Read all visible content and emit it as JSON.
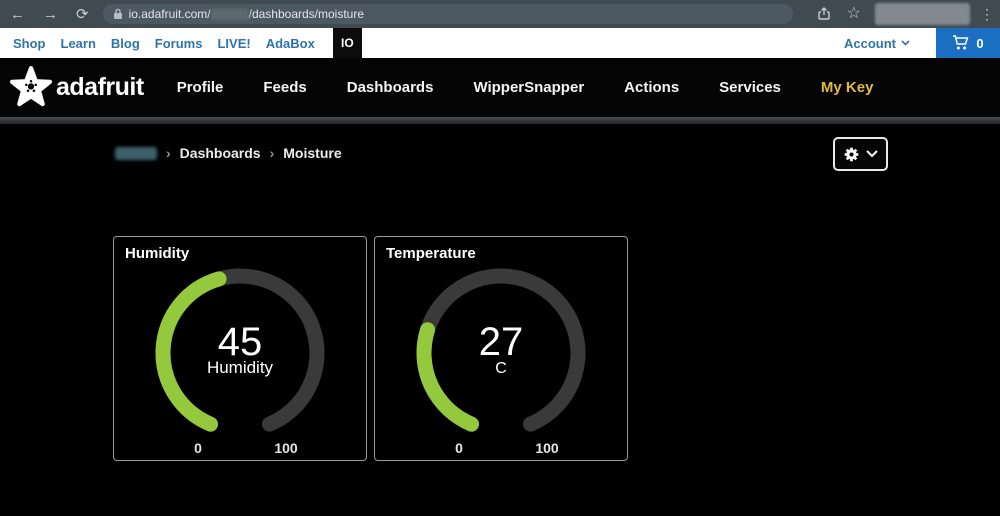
{
  "browser": {
    "back": "←",
    "forward": "→",
    "refresh": "⟳",
    "url_prefix": "io.adafruit.com/",
    "url_suffix": "/dashboards/moisture",
    "kebab": "⋮",
    "star": "☆"
  },
  "shop_bar": {
    "links": [
      "Shop",
      "Learn",
      "Blog",
      "Forums",
      "LIVE!",
      "AdaBox"
    ],
    "io_tab": "IO",
    "account_label": "Account",
    "cart_count": "0"
  },
  "main_nav": {
    "brand": "adafruit",
    "items": [
      "Profile",
      "Feeds",
      "Dashboards",
      "WipperSnapper",
      "Actions",
      "Services",
      "My Key"
    ],
    "highlight_item": "My Key",
    "highlight_color": "#e3bc3f"
  },
  "breadcrumb": {
    "separator": "›",
    "items": [
      "Dashboards",
      "Moisture"
    ]
  },
  "chart_data": [
    {
      "type": "gauge",
      "title": "Humidity",
      "value": 45,
      "center_label": "Humidity",
      "min": 0,
      "max": 100,
      "tick_labels": [
        "0",
        "100"
      ],
      "arc_color": "#94c83d",
      "track_color": "#3a3a3a"
    },
    {
      "type": "gauge",
      "title": "Temperature",
      "value": 27,
      "center_label": "C",
      "min": 0,
      "max": 100,
      "tick_labels": [
        "0",
        "100"
      ],
      "arc_color": "#94c83d",
      "track_color": "#3a3a3a"
    }
  ],
  "colors": {
    "accent_green": "#94c83d",
    "link_blue": "#2e74aa",
    "cart_blue": "#1b6fc3",
    "key_gold": "#e3bc3f"
  }
}
